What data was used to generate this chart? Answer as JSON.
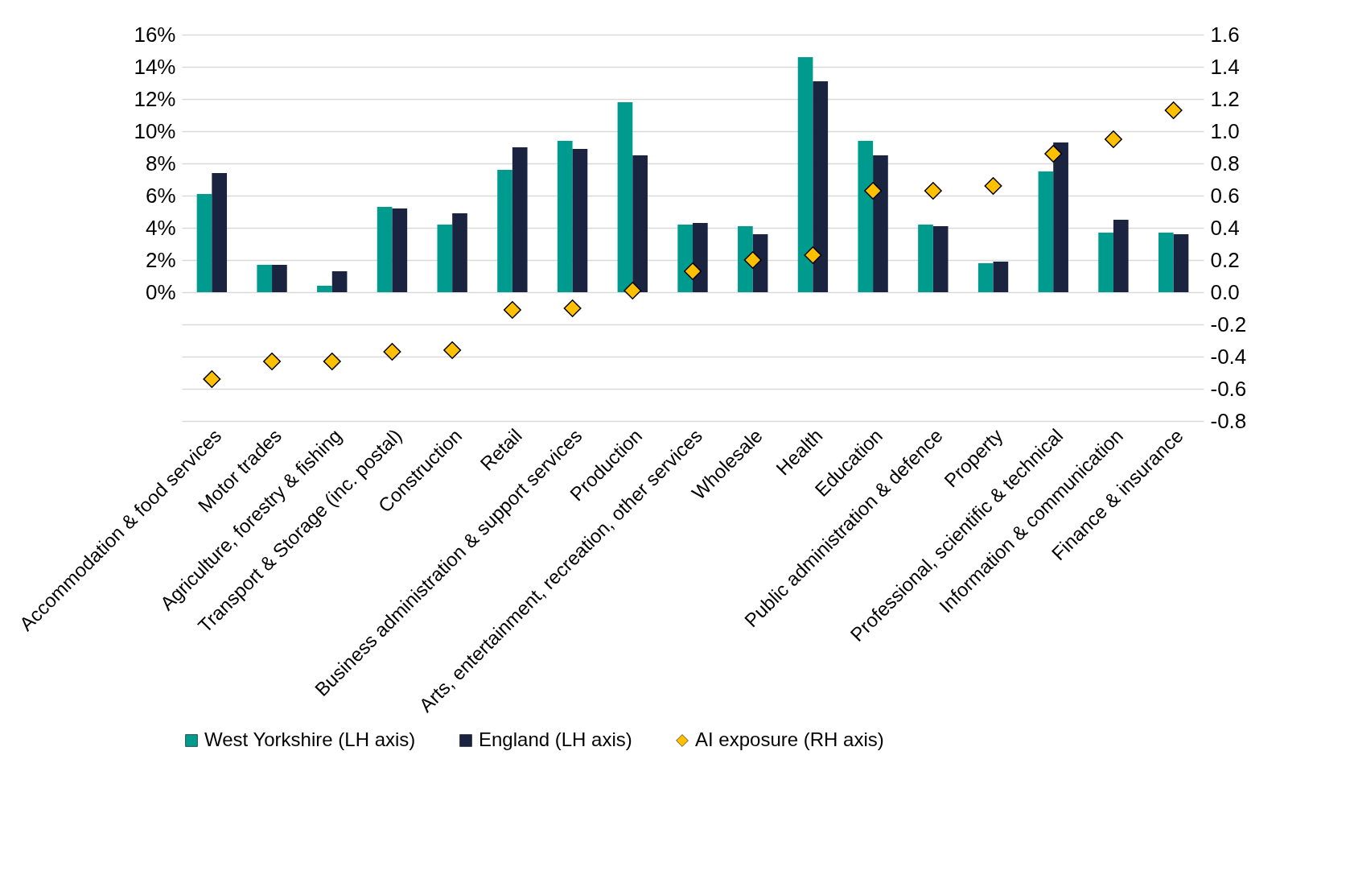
{
  "chart_data": {
    "type": "bar",
    "categories": [
      "Accommodation & food services",
      "Motor trades",
      "Agriculture, forestry & fishing",
      "Transport & Storage (inc. postal)",
      "Construction",
      "Retail",
      "Business administration & support services",
      "Production",
      "Arts, entertainment, recreation, other services",
      "Wholesale",
      "Health",
      "Education",
      "Public administration & defence",
      "Property",
      "Professional, scientific & technical",
      "Information & communication",
      "Finance & insurance"
    ],
    "series": [
      {
        "name": "West Yorkshire (LH axis)",
        "color": "#009b8f",
        "values": [
          6.1,
          1.7,
          0.4,
          5.3,
          4.2,
          7.6,
          9.4,
          11.8,
          4.2,
          4.1,
          14.6,
          9.4,
          4.2,
          1.8,
          7.5,
          3.7,
          3.7
        ]
      },
      {
        "name": "England (LH axis)",
        "color": "#1a2340",
        "values": [
          7.4,
          1.7,
          1.3,
          5.2,
          4.9,
          9.0,
          8.9,
          8.5,
          4.3,
          3.6,
          13.1,
          8.5,
          4.1,
          1.9,
          9.3,
          4.5,
          3.6
        ]
      },
      {
        "name": "AI exposure (RH axis)",
        "color": "#ffc000",
        "type": "scatter",
        "axis": "y2",
        "marker": "diamond",
        "values": [
          -0.54,
          -0.43,
          -0.43,
          -0.37,
          -0.36,
          -0.11,
          -0.1,
          0.01,
          0.13,
          0.2,
          0.23,
          0.63,
          0.63,
          0.66,
          0.86,
          0.95,
          1.13
        ]
      }
    ],
    "ylim": [
      -8,
      16
    ],
    "yticks": [
      {
        "value": -8,
        "label": null
      },
      {
        "value": -6,
        "label": null
      },
      {
        "value": -4,
        "label": null
      },
      {
        "value": -2,
        "label": null
      },
      {
        "value": 0,
        "label": "0%"
      },
      {
        "value": 2,
        "label": "2%"
      },
      {
        "value": 4,
        "label": "4%"
      },
      {
        "value": 6,
        "label": "6%"
      },
      {
        "value": 8,
        "label": "8%"
      },
      {
        "value": 10,
        "label": "10%"
      },
      {
        "value": 12,
        "label": "12%"
      },
      {
        "value": 14,
        "label": "14%"
      },
      {
        "value": 16,
        "label": "16%"
      }
    ],
    "y2lim": [
      -0.8,
      1.6
    ],
    "y2ticks": [
      -0.8,
      -0.6,
      -0.4,
      -0.2,
      {
        "value": 0,
        "label": "0.0"
      },
      0.2,
      0.4,
      0.6,
      0.8,
      {
        "value": 1,
        "label": "1.0"
      },
      1.2,
      1.4,
      1.6
    ],
    "grid": "y",
    "legend": "bottom"
  }
}
